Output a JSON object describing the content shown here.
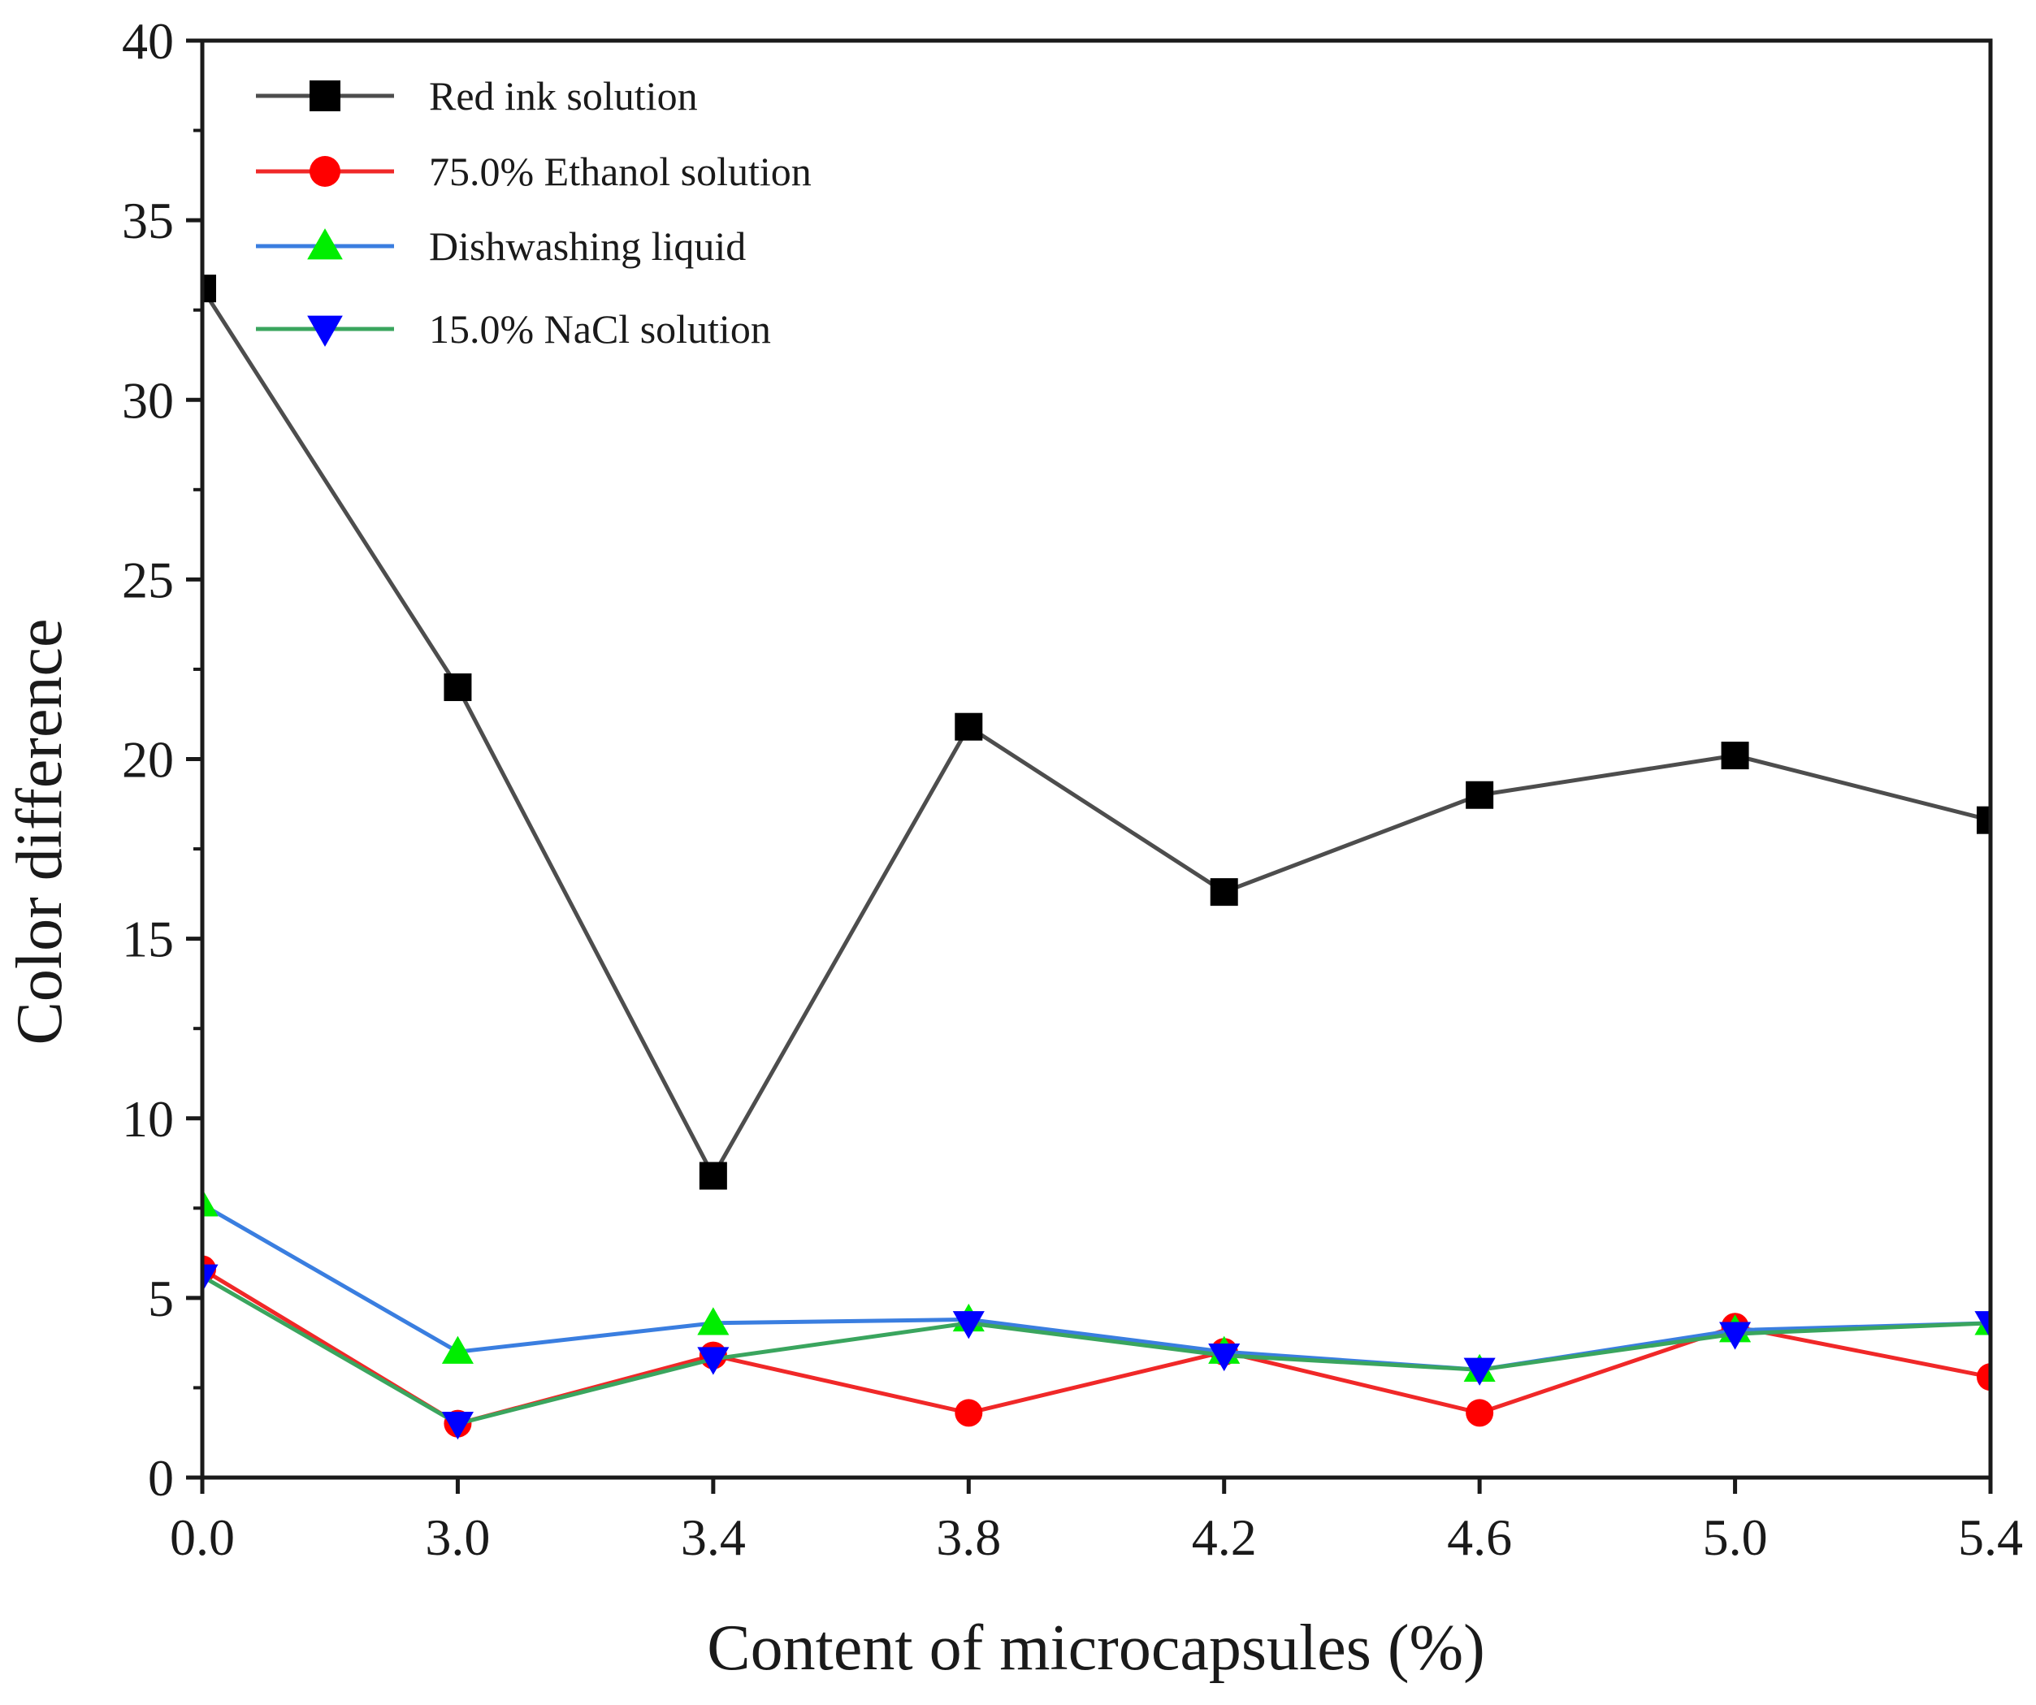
{
  "chart_data": {
    "type": "line",
    "title": "",
    "xlabel": "Content of microcapsules (%)",
    "ylabel": "Color difference",
    "categories": [
      "0.0",
      "3.0",
      "3.4",
      "3.8",
      "4.2",
      "4.6",
      "5.0",
      "5.4"
    ],
    "ylim": [
      0,
      40
    ],
    "yticks": [
      "0",
      "5",
      "10",
      "15",
      "20",
      "25",
      "30",
      "35",
      "40"
    ],
    "grid": false,
    "legend_position": "top-left",
    "series": [
      {
        "name": "Red ink solution",
        "marker": "square",
        "line_color": "#4d4d4d",
        "marker_color": "#000000",
        "values": [
          33.1,
          22.0,
          8.4,
          20.9,
          16.3,
          19.0,
          20.1,
          18.3
        ]
      },
      {
        "name": "75.0% Ethanol solution",
        "marker": "circle",
        "line_color": "#f02828",
        "marker_color": "#ff0000",
        "values": [
          5.8,
          1.5,
          3.4,
          1.8,
          3.5,
          1.8,
          4.2,
          2.8
        ]
      },
      {
        "name": "Dishwashing liquid",
        "marker": "triangle-up",
        "line_color": "#3a7ee0",
        "marker_color": "#00ee00",
        "values": [
          7.6,
          3.5,
          4.3,
          4.4,
          3.5,
          3.0,
          4.1,
          4.3
        ]
      },
      {
        "name": "15.0% NaCl solution",
        "marker": "triangle-down",
        "line_color": "#3aa55e",
        "marker_color": "#0000ff",
        "values": [
          5.6,
          1.5,
          3.3,
          4.3,
          3.4,
          3.0,
          4.0,
          4.3
        ]
      }
    ]
  }
}
